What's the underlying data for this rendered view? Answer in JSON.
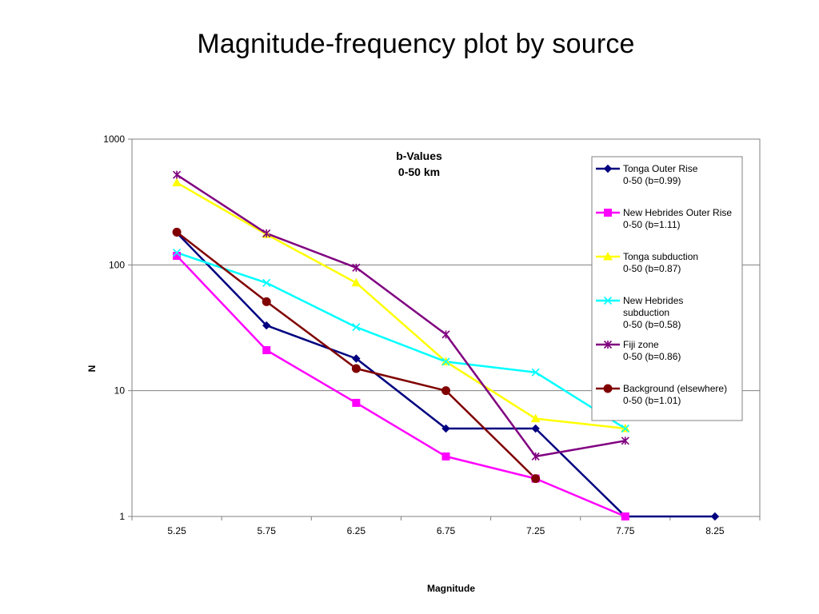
{
  "slide": {
    "title": "Magnitude-frequency plot by source"
  },
  "chart_data": {
    "type": "line",
    "title": "b-Values",
    "subtitle": "0-50 km",
    "xlabel": "Magnitude",
    "ylabel": "N",
    "yscale": "log",
    "ylim": [
      1,
      1000
    ],
    "y_ticks": [
      "1",
      "10",
      "100",
      "1000"
    ],
    "categories": [
      "5.25",
      "5.75",
      "6.25",
      "6.75",
      "7.25",
      "7.75",
      "8.25"
    ],
    "grid": "horizontal major lines",
    "legend_position": "right",
    "series": [
      {
        "name": "Tonga Outer Rise",
        "name_line2": "0-50 (b=0.99)",
        "name_line3": "",
        "color": "#000080",
        "marker": "diamond",
        "values": [
          180,
          33,
          18,
          5,
          5,
          1,
          1
        ]
      },
      {
        "name": "New Hebrides Outer Rise",
        "name_line2": "0-50 (b=1.11)",
        "name_line3": "",
        "color": "#FF00FF",
        "marker": "square",
        "values": [
          118,
          21,
          8,
          3,
          2,
          1,
          null
        ]
      },
      {
        "name": "Tonga subduction",
        "name_line2": "0-50 (b=0.87)",
        "name_line3": "",
        "color": "#FFFF00",
        "marker": "triangle",
        "values": [
          450,
          175,
          72,
          17,
          6,
          5,
          null
        ]
      },
      {
        "name": "New Hebrides",
        "name_line2": "subduction",
        "name_line3": "0-50 (b=0.58)",
        "color": "#00FFFF",
        "marker": "x",
        "values": [
          125,
          72,
          32,
          17,
          14,
          5,
          null
        ]
      },
      {
        "name": "Fiji zone",
        "name_line2": "0-50 (b=0.86)",
        "name_line3": "",
        "color": "#800080",
        "marker": "star",
        "values": [
          520,
          178,
          95,
          28,
          3,
          4,
          null
        ]
      },
      {
        "name": "Background (elsewhere)",
        "name_line2": "0-50 (b=1.01)",
        "name_line3": "",
        "color": "#800000",
        "marker": "circle",
        "values": [
          182,
          51,
          15,
          10,
          2,
          null,
          null
        ]
      }
    ]
  }
}
